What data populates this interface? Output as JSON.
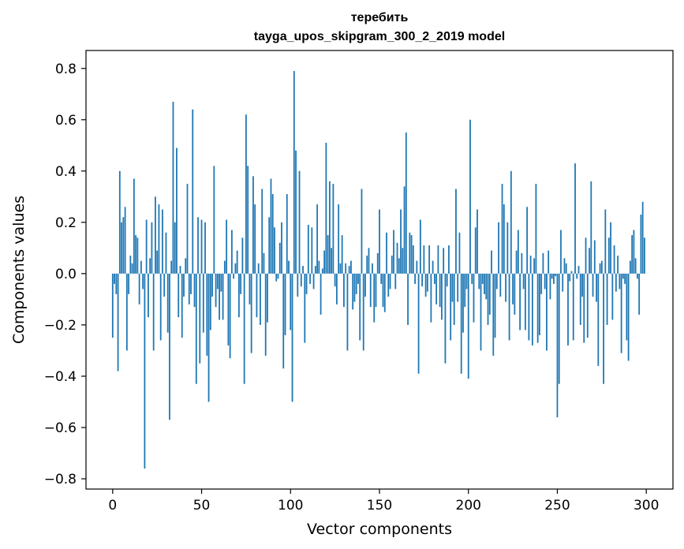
{
  "chart_data": {
    "type": "bar",
    "title": "теребить",
    "subtitle": "tayga_upos_skipgram_300_2_2019 model",
    "xlabel": "Vector components",
    "ylabel": "Components values",
    "xlim": [
      -15,
      315
    ],
    "ylim": [
      -0.84,
      0.87
    ],
    "xticks": [
      0,
      50,
      100,
      150,
      200,
      250,
      300
    ],
    "xtick_labels": [
      "0",
      "50",
      "100",
      "150",
      "200",
      "250",
      "300"
    ],
    "yticks": [
      -0.8,
      -0.6,
      -0.4,
      -0.2,
      0.0,
      0.2,
      0.4,
      0.6,
      0.8
    ],
    "ytick_labels": [
      "−0.8",
      "−0.6",
      "−0.4",
      "−0.2",
      "0.0",
      "0.2",
      "0.4",
      "0.6",
      "0.8"
    ],
    "grid": false,
    "bar_color": "#1f77b4",
    "x": "0..299",
    "values": [
      -0.25,
      -0.04,
      -0.08,
      -0.38,
      0.4,
      0.2,
      0.22,
      0.26,
      -0.3,
      -0.08,
      0.07,
      0.04,
      0.37,
      0.15,
      0.14,
      -0.12,
      0.05,
      -0.06,
      -0.76,
      0.21,
      -0.17,
      0.06,
      0.2,
      -0.3,
      0.3,
      0.09,
      0.27,
      -0.26,
      0.25,
      -0.09,
      0.16,
      -0.23,
      -0.57,
      0.05,
      0.67,
      0.2,
      0.49,
      -0.17,
      0.03,
      -0.25,
      -0.09,
      0.06,
      0.35,
      -0.12,
      -0.08,
      0.64,
      -0.13,
      -0.43,
      0.22,
      -0.35,
      0.21,
      -0.23,
      0.2,
      -0.32,
      -0.5,
      -0.22,
      -0.09,
      0.42,
      -0.13,
      -0.06,
      -0.18,
      -0.07,
      -0.18,
      0.05,
      0.21,
      -0.28,
      -0.33,
      0.17,
      -0.02,
      0.04,
      0.09,
      -0.17,
      -0.08,
      0.14,
      -0.43,
      0.62,
      0.42,
      -0.12,
      -0.31,
      0.38,
      0.27,
      -0.17,
      0.04,
      -0.2,
      0.33,
      0.08,
      -0.32,
      -0.19,
      0.22,
      0.37,
      0.31,
      0.18,
      -0.03,
      -0.02,
      0.12,
      0.2,
      -0.37,
      -0.24,
      0.31,
      0.05,
      -0.22,
      -0.5,
      0.79,
      0.48,
      -0.09,
      0.4,
      -0.05,
      0.03,
      -0.27,
      -0.08,
      0.19,
      -0.04,
      0.18,
      -0.06,
      0.03,
      0.27,
      0.05,
      -0.16,
      0.02,
      0.09,
      0.51,
      0.15,
      0.36,
      0.1,
      0.35,
      -0.05,
      -0.12,
      0.27,
      0.04,
      0.15,
      -0.13,
      0.04,
      -0.3,
      0.03,
      0.05,
      -0.14,
      -0.11,
      -0.08,
      -0.04,
      -0.26,
      0.33,
      -0.3,
      -0.09,
      0.07,
      0.1,
      -0.13,
      0.04,
      -0.19,
      -0.13,
      0.08,
      0.25,
      -0.04,
      -0.13,
      -0.15,
      0.16,
      -0.09,
      -0.06,
      0.07,
      0.17,
      -0.06,
      0.12,
      0.06,
      0.25,
      0.1,
      0.34,
      0.55,
      -0.2,
      0.16,
      0.15,
      0.11,
      -0.04,
      0.05,
      -0.39,
      0.21,
      -0.05,
      0.11,
      -0.09,
      -0.07,
      0.11,
      -0.19,
      0.05,
      -0.04,
      -0.12,
      0.11,
      -0.13,
      -0.18,
      0.1,
      -0.35,
      -0.05,
      0.11,
      -0.26,
      -0.11,
      -0.2,
      0.33,
      -0.11,
      0.16,
      -0.39,
      -0.23,
      -0.13,
      -0.06,
      -0.41,
      0.6,
      -0.04,
      -0.19,
      0.18,
      0.25,
      -0.06,
      -0.3,
      -0.04,
      -0.08,
      -0.1,
      -0.2,
      -0.16,
      0.09,
      -0.32,
      -0.25,
      -0.06,
      0.2,
      -0.09,
      0.35,
      0.27,
      -0.11,
      0.2,
      -0.26,
      0.4,
      -0.12,
      -0.16,
      0.09,
      0.17,
      -0.22,
      0.08,
      -0.06,
      -0.22,
      0.26,
      -0.26,
      0.07,
      -0.28,
      0.06,
      0.35,
      -0.27,
      -0.24,
      -0.08,
      0.08,
      -0.06,
      -0.3,
      0.09,
      -0.1,
      -0.02,
      -0.04,
      -0.01,
      -0.56,
      -0.43,
      0.17,
      -0.07,
      0.06,
      0.04,
      -0.28,
      -0.03,
      0.01,
      -0.26,
      0.43,
      -0.02,
      0.03,
      -0.2,
      -0.09,
      -0.27,
      0.14,
      -0.25,
      0.1,
      0.36,
      -0.09,
      0.13,
      -0.11,
      -0.36,
      0.04,
      0.05,
      -0.43,
      0.25,
      -0.2,
      0.14,
      0.2,
      -0.18,
      0.11,
      -0.07,
      0.07,
      -0.06,
      -0.31,
      -0.02,
      -0.04,
      -0.26,
      -0.34,
      0.05,
      0.15,
      0.17,
      0.06,
      -0.02,
      -0.16,
      0.23,
      0.28,
      0.14
    ]
  }
}
